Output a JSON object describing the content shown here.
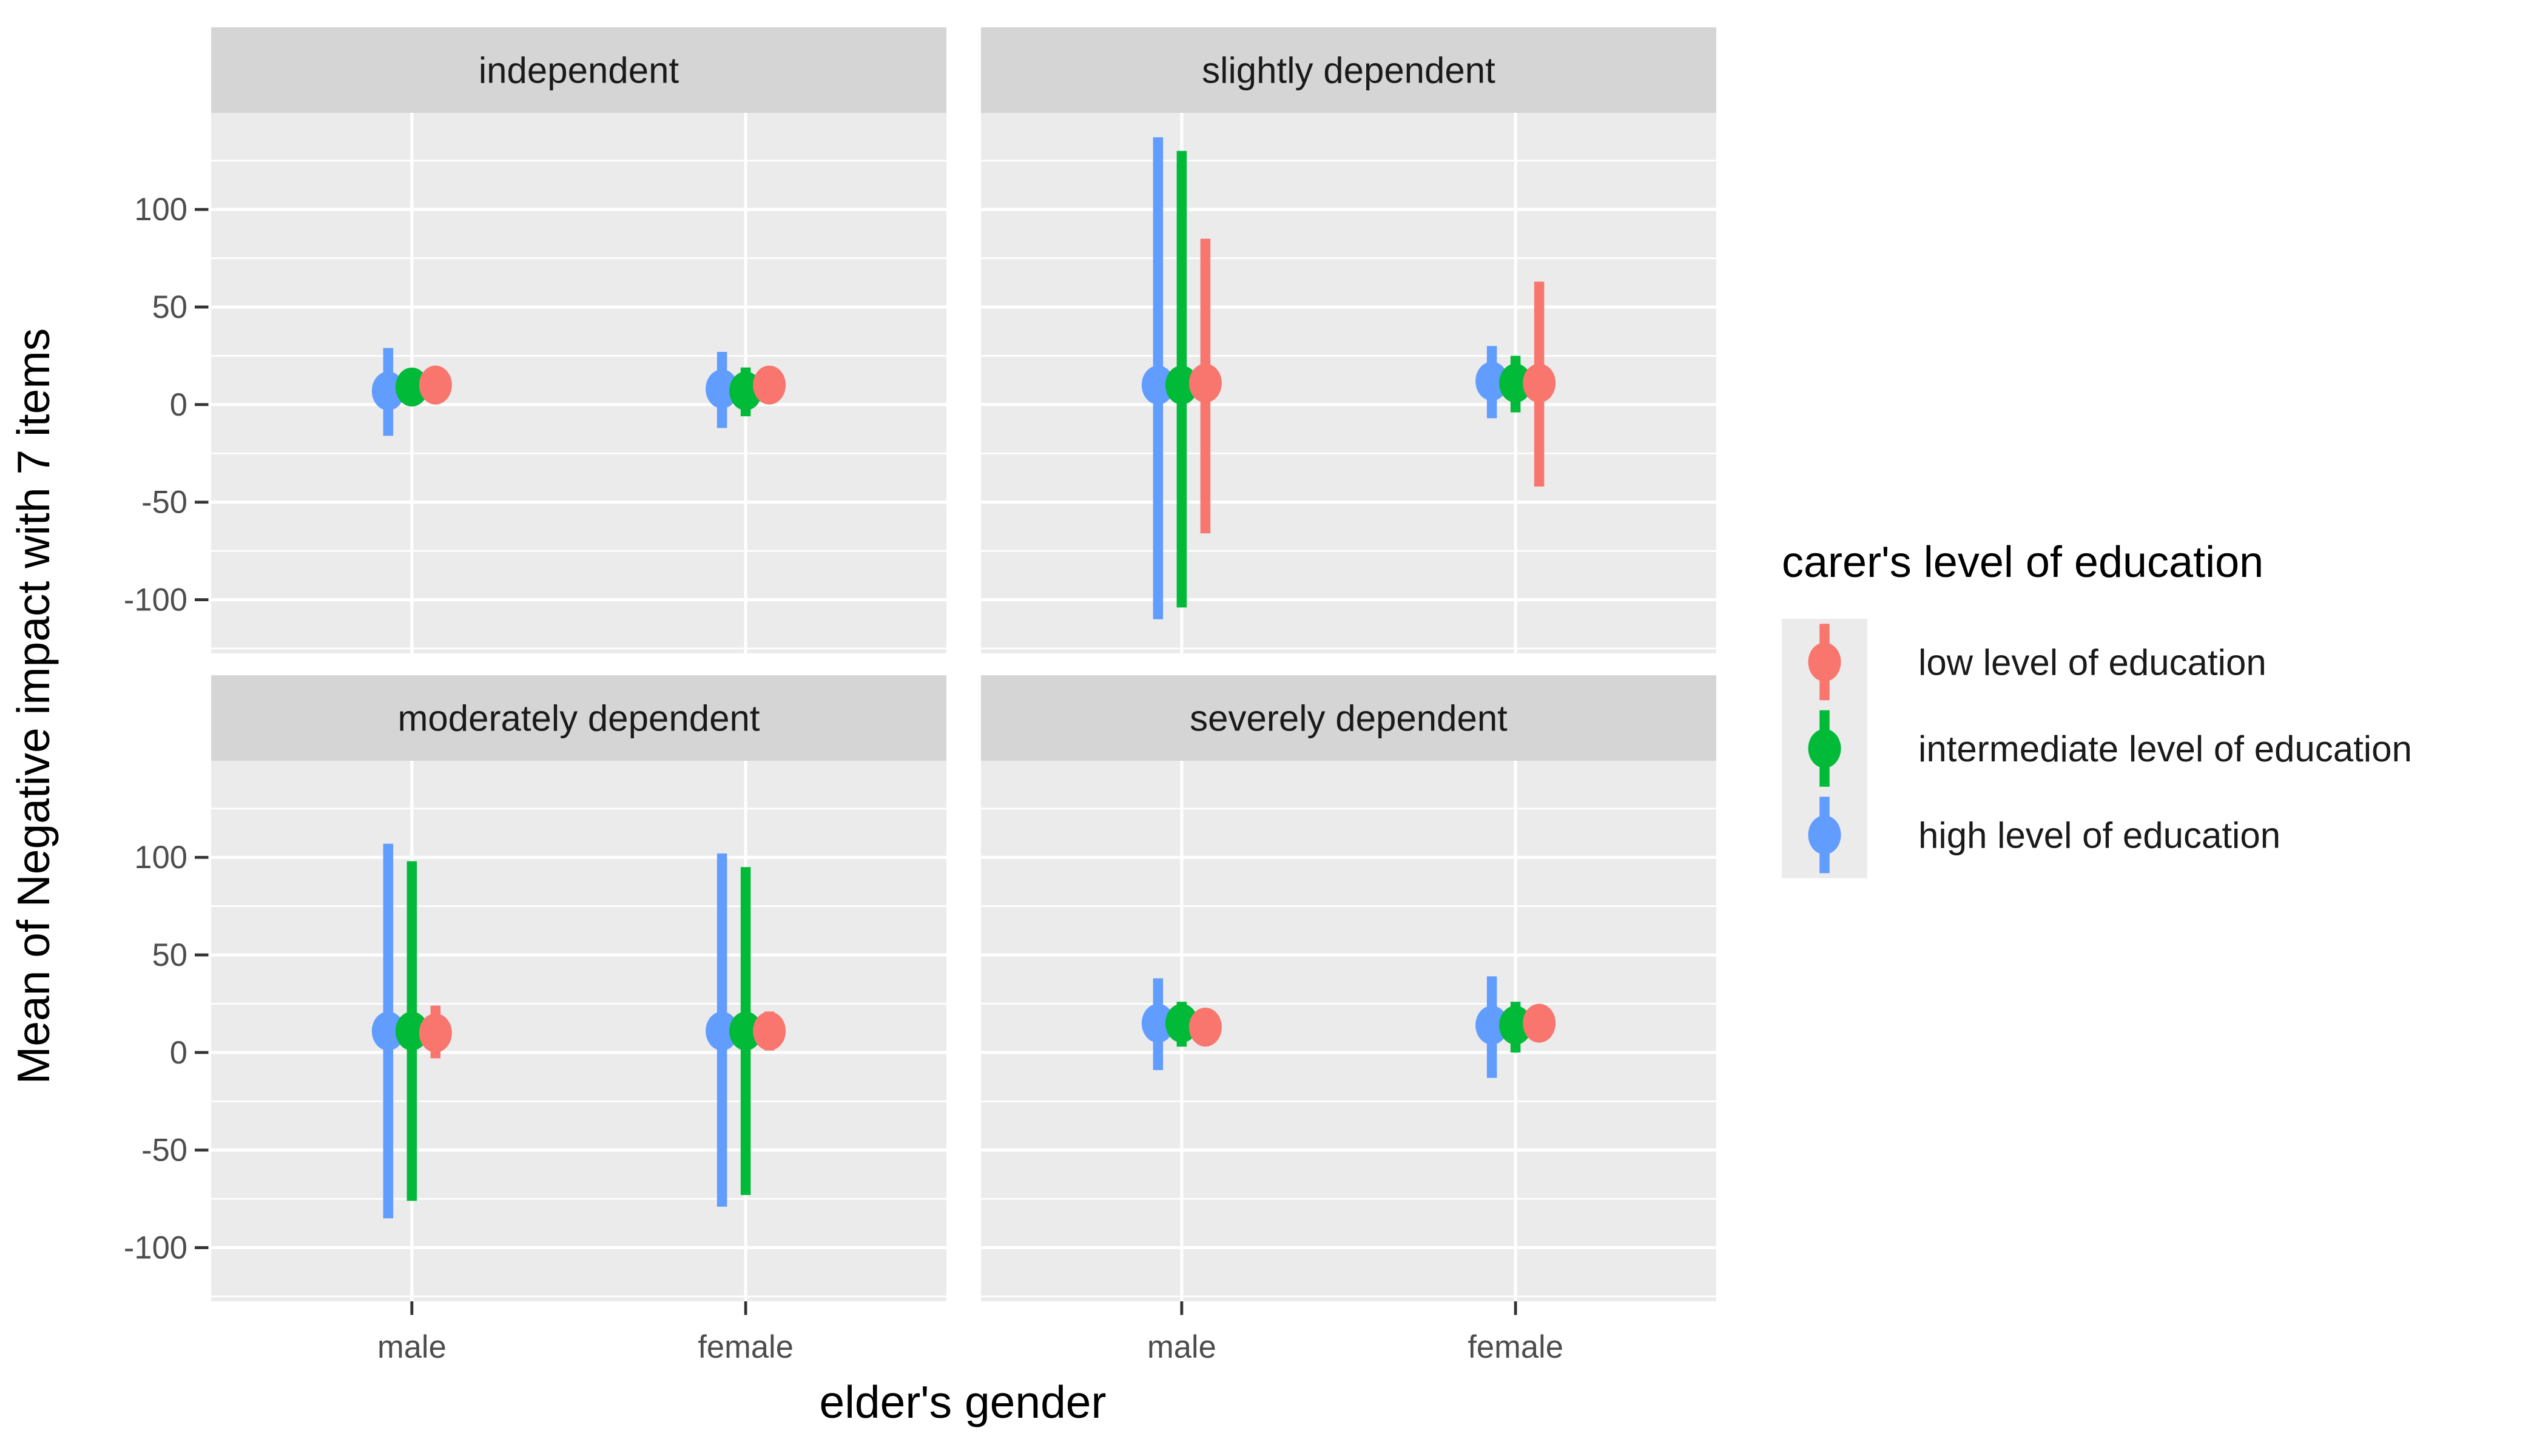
{
  "chart_data": {
    "type": "pointrange",
    "facet_layout": "wrap-2x2",
    "xlabel": "elder's gender",
    "ylabel": "Mean of Negative impact with 7 items",
    "categories": [
      "male",
      "female"
    ],
    "y_ticks": [
      100,
      50,
      0,
      -50,
      -100
    ],
    "y_minor_ticks": [
      125,
      75,
      25,
      -25,
      -75,
      -125
    ],
    "ylim": [
      -127.5,
      149.5
    ],
    "grid": true,
    "legend_position": "right",
    "colors": {
      "panel_background": "#EBEBEB",
      "strip_background": "#D5D5D5",
      "gridline": "#FFFFFF",
      "axis_text": "#4D4D4D",
      "tick_mark": "#333333",
      "strip_text": "#1A1A1A",
      "title_text": "#000000"
    },
    "legend": {
      "title": "carer's level of education"
    },
    "series": [
      {
        "id": "low",
        "label": "low level of education",
        "color": "#F8766D"
      },
      {
        "id": "intermediate",
        "label": "intermediate level of education",
        "color": "#00BA38"
      },
      {
        "id": "high",
        "label": "high level of education",
        "color": "#619CFF"
      }
    ],
    "facets": [
      {
        "label": "independent",
        "values": {
          "male": {
            "high": {
              "mean": 7,
              "lo": -16,
              "hi": 29
            },
            "intermediate": {
              "mean": 9,
              "lo": 3,
              "hi": 14
            },
            "low": {
              "mean": 10,
              "lo": 5,
              "hi": 15
            }
          },
          "female": {
            "high": {
              "mean": 8,
              "lo": -12,
              "hi": 27
            },
            "intermediate": {
              "mean": 7,
              "lo": -6,
              "hi": 19
            },
            "low": {
              "mean": 10,
              "lo": 5,
              "hi": 15
            }
          }
        }
      },
      {
        "label": "slightly dependent",
        "values": {
          "male": {
            "high": {
              "mean": 10,
              "lo": -110,
              "hi": 137
            },
            "intermediate": {
              "mean": 10,
              "lo": -104,
              "hi": 130
            },
            "low": {
              "mean": 11,
              "lo": -66,
              "hi": 85
            }
          },
          "female": {
            "high": {
              "mean": 12,
              "lo": -7,
              "hi": 30
            },
            "intermediate": {
              "mean": 11,
              "lo": -4,
              "hi": 25
            },
            "low": {
              "mean": 11,
              "lo": -42,
              "hi": 63
            }
          }
        }
      },
      {
        "label": "moderately dependent",
        "values": {
          "male": {
            "high": {
              "mean": 11,
              "lo": -85,
              "hi": 107
            },
            "intermediate": {
              "mean": 11,
              "lo": -76,
              "hi": 98
            },
            "low": {
              "mean": 10,
              "lo": -3,
              "hi": 24
            }
          },
          "female": {
            "high": {
              "mean": 11,
              "lo": -79,
              "hi": 102
            },
            "intermediate": {
              "mean": 11,
              "lo": -73,
              "hi": 95
            },
            "low": {
              "mean": 11,
              "lo": 1,
              "hi": 21
            }
          }
        }
      },
      {
        "label": "severely dependent",
        "values": {
          "male": {
            "high": {
              "mean": 15,
              "lo": -9,
              "hi": 38
            },
            "intermediate": {
              "mean": 15,
              "lo": 3,
              "hi": 26
            },
            "low": {
              "mean": 13,
              "lo": 6,
              "hi": 20
            }
          },
          "female": {
            "high": {
              "mean": 14,
              "lo": -13,
              "hi": 39
            },
            "intermediate": {
              "mean": 14,
              "lo": 0,
              "hi": 26
            },
            "low": {
              "mean": 15,
              "lo": 8,
              "hi": 22
            }
          }
        }
      }
    ]
  }
}
